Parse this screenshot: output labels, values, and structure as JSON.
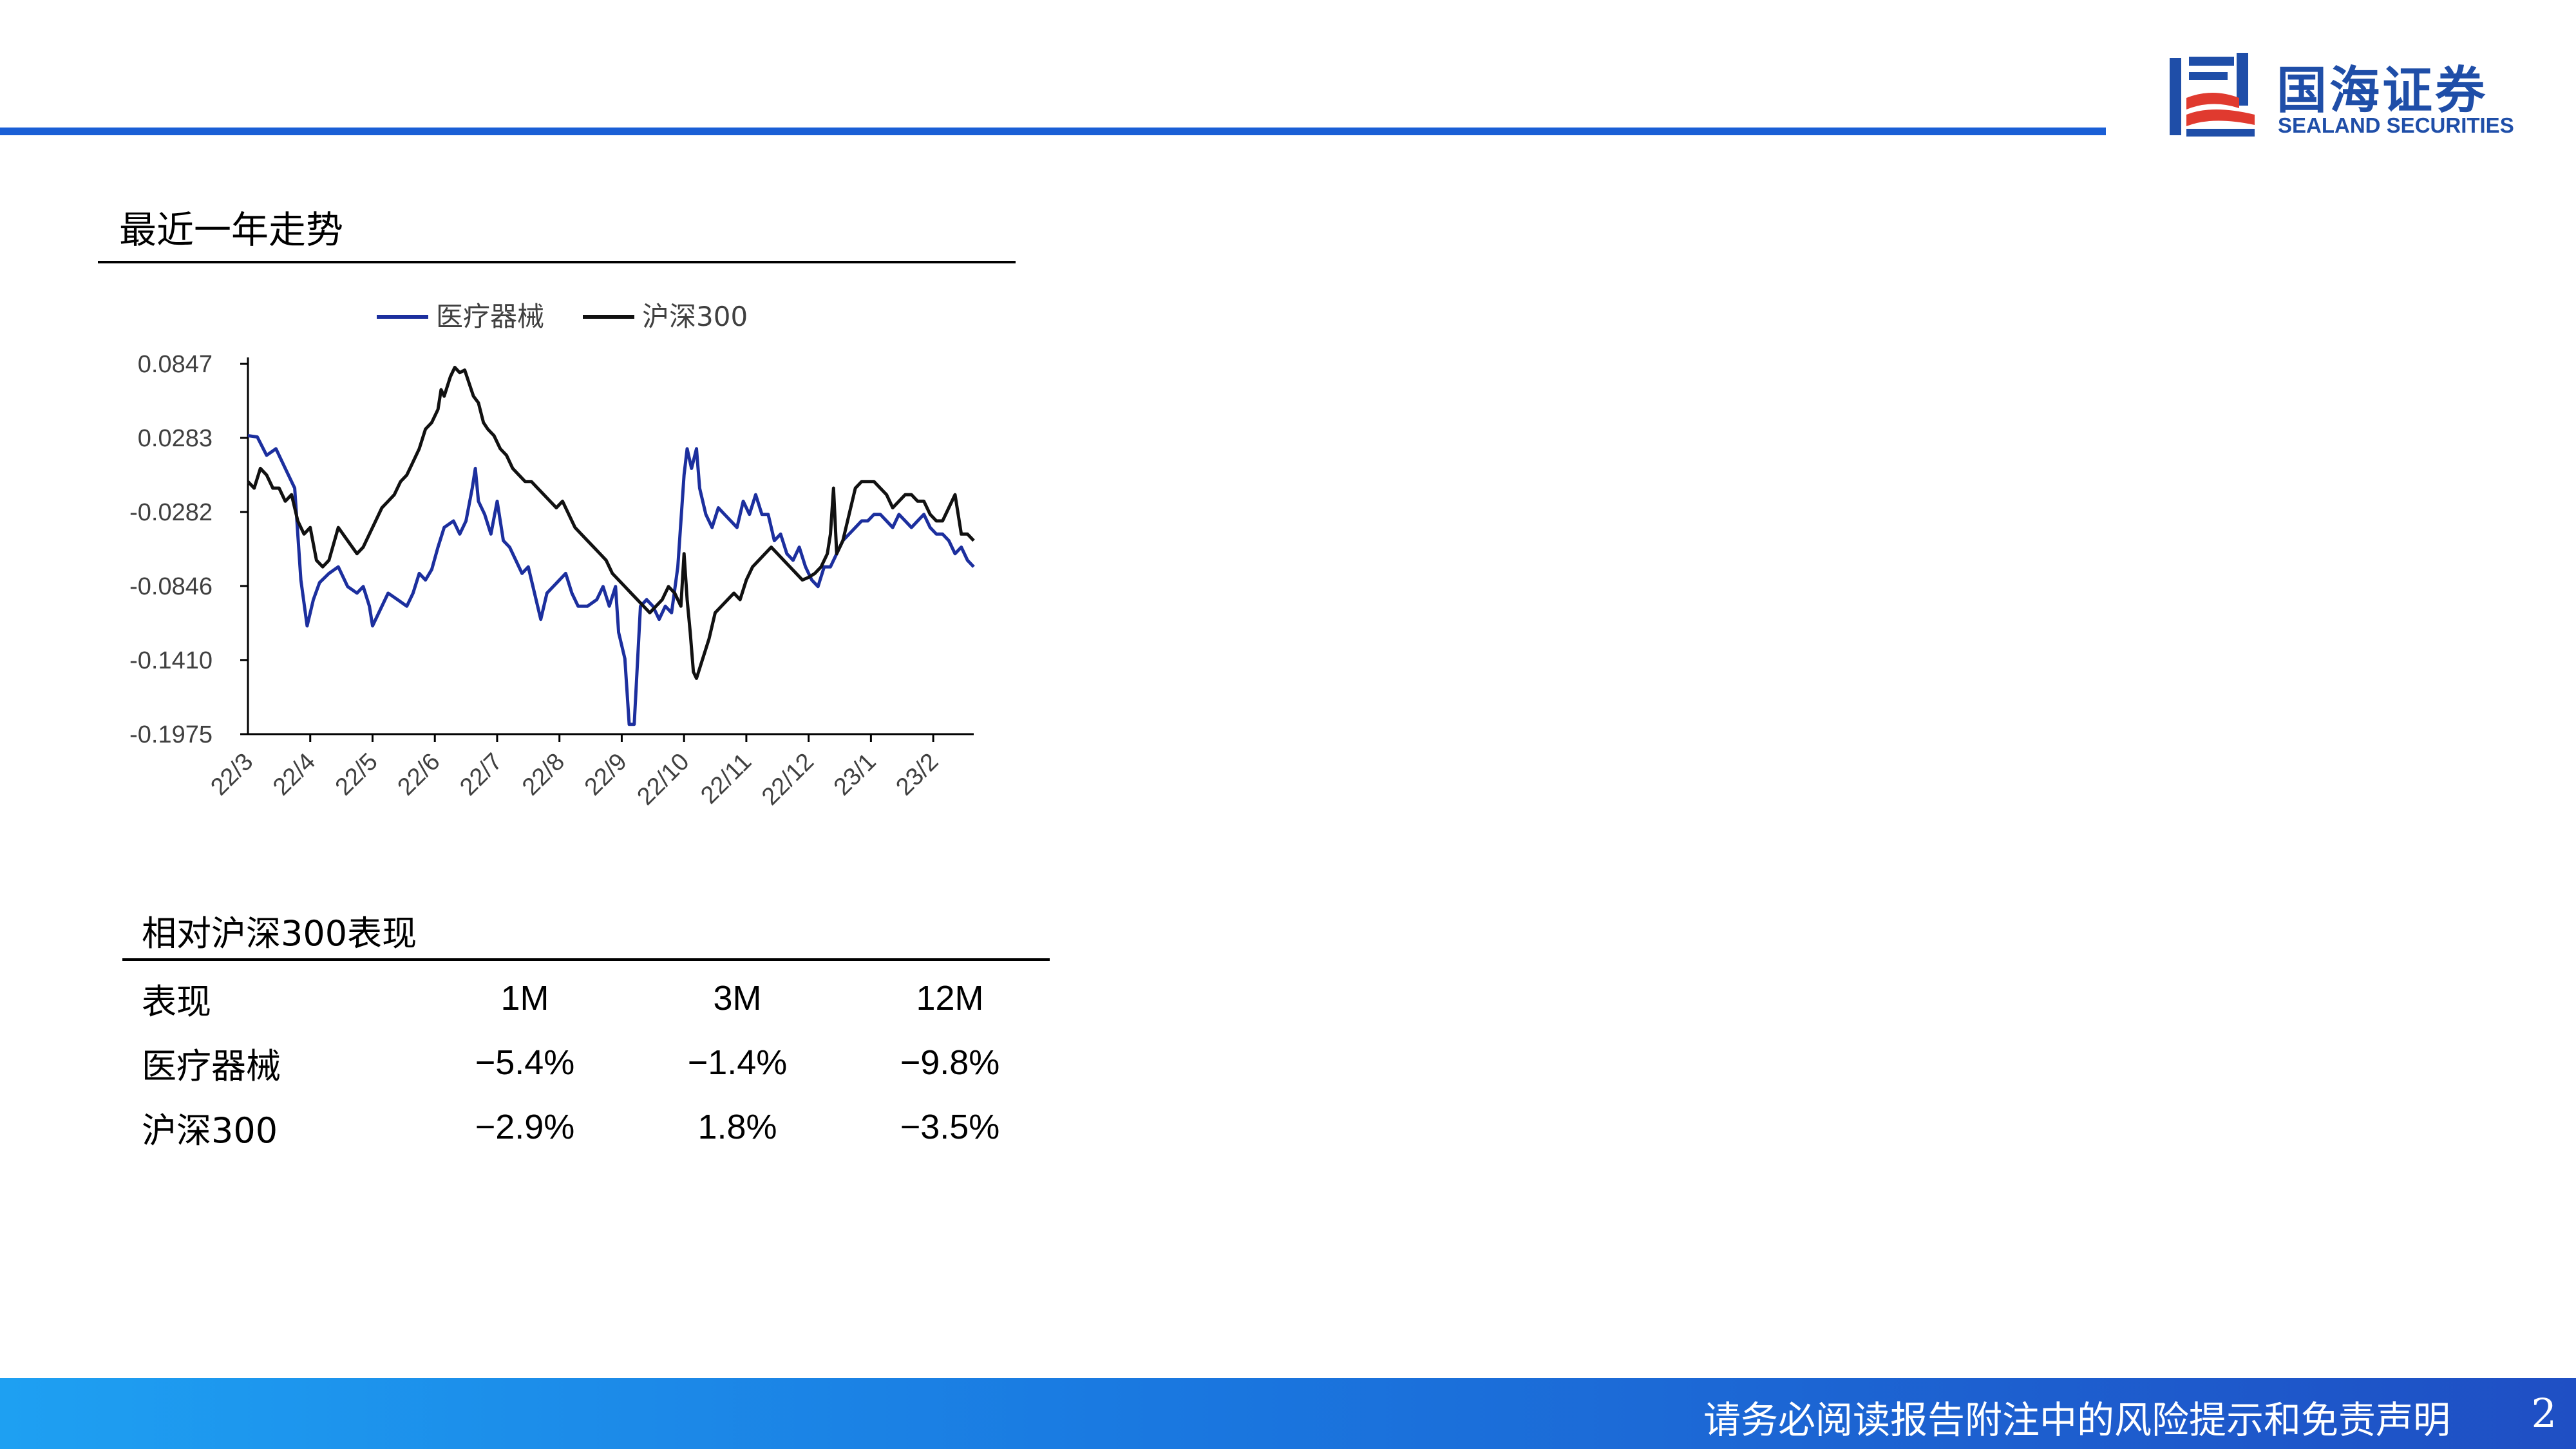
{
  "header": {
    "logo_cn": "国海证券",
    "logo_en": "SEALAND SECURITIES",
    "brand_color": "#1a5fd6"
  },
  "section": {
    "title": "最近一年走势"
  },
  "chart_data": {
    "type": "line",
    "legend": {
      "position": "top",
      "items": [
        "医疗器械",
        "沪深300"
      ]
    },
    "yticks": [
      "0.0847",
      "0.0283",
      "-0.0282",
      "-0.0846",
      "-0.1410",
      "-0.1975"
    ],
    "ylim": [
      -0.1975,
      0.0847
    ],
    "xticks": [
      "22/3",
      "22/4",
      "22/5",
      "22/6",
      "22/7",
      "22/8",
      "22/9",
      "22/10",
      "22/11",
      "22/12",
      "23/1",
      "23/2"
    ],
    "xlim": [
      0,
      11.65
    ],
    "grid": false,
    "series": [
      {
        "name": "医疗器械",
        "color": "#1c2f9e",
        "points": [
          [
            0,
            0.03
          ],
          [
            0.15,
            0.029
          ],
          [
            0.3,
            0.015
          ],
          [
            0.45,
            0.02
          ],
          [
            0.6,
            0.005
          ],
          [
            0.75,
            -0.01
          ],
          [
            0.85,
            -0.08
          ],
          [
            0.95,
            -0.115
          ],
          [
            1.05,
            -0.095
          ],
          [
            1.15,
            -0.082
          ],
          [
            1.3,
            -0.075
          ],
          [
            1.45,
            -0.07
          ],
          [
            1.6,
            -0.085
          ],
          [
            1.75,
            -0.09
          ],
          [
            1.85,
            -0.085
          ],
          [
            1.95,
            -0.1
          ],
          [
            2.0,
            -0.115
          ],
          [
            2.1,
            -0.105
          ],
          [
            2.25,
            -0.09
          ],
          [
            2.4,
            -0.095
          ],
          [
            2.55,
            -0.1
          ],
          [
            2.65,
            -0.09
          ],
          [
            2.75,
            -0.075
          ],
          [
            2.85,
            -0.08
          ],
          [
            2.95,
            -0.072
          ],
          [
            3.05,
            -0.055
          ],
          [
            3.15,
            -0.04
          ],
          [
            3.3,
            -0.035
          ],
          [
            3.4,
            -0.045
          ],
          [
            3.5,
            -0.035
          ],
          [
            3.6,
            -0.01
          ],
          [
            3.65,
            0.005
          ],
          [
            3.7,
            -0.02
          ],
          [
            3.8,
            -0.03
          ],
          [
            3.9,
            -0.045
          ],
          [
            4.0,
            -0.02
          ],
          [
            4.1,
            -0.05
          ],
          [
            4.2,
            -0.055
          ],
          [
            4.3,
            -0.065
          ],
          [
            4.4,
            -0.075
          ],
          [
            4.5,
            -0.07
          ],
          [
            4.6,
            -0.09
          ],
          [
            4.7,
            -0.11
          ],
          [
            4.8,
            -0.09
          ],
          [
            4.9,
            -0.085
          ],
          [
            5.0,
            -0.08
          ],
          [
            5.1,
            -0.075
          ],
          [
            5.2,
            -0.09
          ],
          [
            5.3,
            -0.1
          ],
          [
            5.45,
            -0.1
          ],
          [
            5.6,
            -0.095
          ],
          [
            5.7,
            -0.085
          ],
          [
            5.8,
            -0.1
          ],
          [
            5.9,
            -0.085
          ],
          [
            5.95,
            -0.12
          ],
          [
            6.05,
            -0.14
          ],
          [
            6.12,
            -0.19
          ],
          [
            6.2,
            -0.19
          ],
          [
            6.3,
            -0.1
          ],
          [
            6.4,
            -0.095
          ],
          [
            6.5,
            -0.1
          ],
          [
            6.6,
            -0.11
          ],
          [
            6.7,
            -0.1
          ],
          [
            6.8,
            -0.105
          ],
          [
            6.9,
            -0.07
          ],
          [
            7.0,
            0.0
          ],
          [
            7.05,
            0.02
          ],
          [
            7.12,
            0.005
          ],
          [
            7.2,
            0.02
          ],
          [
            7.25,
            -0.01
          ],
          [
            7.35,
            -0.03
          ],
          [
            7.45,
            -0.04
          ],
          [
            7.55,
            -0.025
          ],
          [
            7.65,
            -0.03
          ],
          [
            7.75,
            -0.035
          ],
          [
            7.85,
            -0.04
          ],
          [
            7.95,
            -0.02
          ],
          [
            8.05,
            -0.03
          ],
          [
            8.15,
            -0.015
          ],
          [
            8.25,
            -0.03
          ],
          [
            8.35,
            -0.03
          ],
          [
            8.45,
            -0.05
          ],
          [
            8.55,
            -0.045
          ],
          [
            8.65,
            -0.06
          ],
          [
            8.75,
            -0.065
          ],
          [
            8.85,
            -0.055
          ],
          [
            8.95,
            -0.07
          ],
          [
            9.05,
            -0.08
          ],
          [
            9.15,
            -0.085
          ],
          [
            9.25,
            -0.07
          ],
          [
            9.35,
            -0.07
          ],
          [
            9.45,
            -0.06
          ],
          [
            9.55,
            -0.05
          ],
          [
            9.65,
            -0.045
          ],
          [
            9.75,
            -0.04
          ],
          [
            9.85,
            -0.035
          ],
          [
            9.95,
            -0.035
          ],
          [
            10.05,
            -0.03
          ],
          [
            10.15,
            -0.03
          ],
          [
            10.25,
            -0.035
          ],
          [
            10.35,
            -0.04
          ],
          [
            10.45,
            -0.03
          ],
          [
            10.55,
            -0.035
          ],
          [
            10.65,
            -0.04
          ],
          [
            10.75,
            -0.035
          ],
          [
            10.85,
            -0.03
          ],
          [
            10.95,
            -0.04
          ],
          [
            11.05,
            -0.045
          ],
          [
            11.15,
            -0.045
          ],
          [
            11.25,
            -0.05
          ],
          [
            11.35,
            -0.06
          ],
          [
            11.45,
            -0.055
          ],
          [
            11.55,
            -0.065
          ],
          [
            11.65,
            -0.07
          ]
        ]
      },
      {
        "name": "沪深300",
        "color": "#111111",
        "points": [
          [
            0,
            -0.005
          ],
          [
            0.1,
            -0.01
          ],
          [
            0.2,
            0.005
          ],
          [
            0.3,
            0.0
          ],
          [
            0.4,
            -0.01
          ],
          [
            0.5,
            -0.01
          ],
          [
            0.6,
            -0.02
          ],
          [
            0.7,
            -0.015
          ],
          [
            0.8,
            -0.035
          ],
          [
            0.9,
            -0.045
          ],
          [
            1.0,
            -0.04
          ],
          [
            1.1,
            -0.065
          ],
          [
            1.2,
            -0.07
          ],
          [
            1.3,
            -0.065
          ],
          [
            1.45,
            -0.04
          ],
          [
            1.6,
            -0.05
          ],
          [
            1.75,
            -0.06
          ],
          [
            1.85,
            -0.055
          ],
          [
            1.95,
            -0.045
          ],
          [
            2.05,
            -0.035
          ],
          [
            2.15,
            -0.025
          ],
          [
            2.25,
            -0.02
          ],
          [
            2.35,
            -0.015
          ],
          [
            2.45,
            -0.005
          ],
          [
            2.55,
            0.0
          ],
          [
            2.65,
            0.01
          ],
          [
            2.75,
            0.02
          ],
          [
            2.85,
            0.035
          ],
          [
            2.95,
            0.04
          ],
          [
            3.05,
            0.05
          ],
          [
            3.1,
            0.065
          ],
          [
            3.15,
            0.06
          ],
          [
            3.25,
            0.075
          ],
          [
            3.32,
            0.082
          ],
          [
            3.4,
            0.078
          ],
          [
            3.48,
            0.08
          ],
          [
            3.55,
            0.07
          ],
          [
            3.62,
            0.06
          ],
          [
            3.7,
            0.055
          ],
          [
            3.78,
            0.04
          ],
          [
            3.85,
            0.035
          ],
          [
            3.95,
            0.03
          ],
          [
            4.05,
            0.02
          ],
          [
            4.15,
            0.015
          ],
          [
            4.25,
            0.005
          ],
          [
            4.35,
            0.0
          ],
          [
            4.45,
            -0.005
          ],
          [
            4.55,
            -0.005
          ],
          [
            4.65,
            -0.01
          ],
          [
            4.75,
            -0.015
          ],
          [
            4.85,
            -0.02
          ],
          [
            4.95,
            -0.025
          ],
          [
            5.05,
            -0.02
          ],
          [
            5.15,
            -0.03
          ],
          [
            5.25,
            -0.04
          ],
          [
            5.35,
            -0.045
          ],
          [
            5.45,
            -0.05
          ],
          [
            5.55,
            -0.055
          ],
          [
            5.65,
            -0.06
          ],
          [
            5.75,
            -0.065
          ],
          [
            5.85,
            -0.075
          ],
          [
            5.95,
            -0.08
          ],
          [
            6.05,
            -0.085
          ],
          [
            6.15,
            -0.09
          ],
          [
            6.25,
            -0.095
          ],
          [
            6.35,
            -0.1
          ],
          [
            6.45,
            -0.105
          ],
          [
            6.55,
            -0.1
          ],
          [
            6.65,
            -0.095
          ],
          [
            6.75,
            -0.085
          ],
          [
            6.85,
            -0.09
          ],
          [
            6.95,
            -0.1
          ],
          [
            7.0,
            -0.06
          ],
          [
            7.05,
            -0.095
          ],
          [
            7.1,
            -0.12
          ],
          [
            7.15,
            -0.15
          ],
          [
            7.2,
            -0.155
          ],
          [
            7.3,
            -0.14
          ],
          [
            7.4,
            -0.125
          ],
          [
            7.5,
            -0.105
          ],
          [
            7.6,
            -0.1
          ],
          [
            7.7,
            -0.095
          ],
          [
            7.8,
            -0.09
          ],
          [
            7.9,
            -0.095
          ],
          [
            8.0,
            -0.08
          ],
          [
            8.1,
            -0.07
          ],
          [
            8.2,
            -0.065
          ],
          [
            8.3,
            -0.06
          ],
          [
            8.4,
            -0.055
          ],
          [
            8.5,
            -0.06
          ],
          [
            8.6,
            -0.065
          ],
          [
            8.7,
            -0.07
          ],
          [
            8.8,
            -0.075
          ],
          [
            8.9,
            -0.08
          ],
          [
            9.0,
            -0.078
          ],
          [
            9.1,
            -0.075
          ],
          [
            9.2,
            -0.07
          ],
          [
            9.3,
            -0.06
          ],
          [
            9.35,
            -0.045
          ],
          [
            9.4,
            -0.01
          ],
          [
            9.45,
            -0.06
          ],
          [
            9.55,
            -0.05
          ],
          [
            9.65,
            -0.03
          ],
          [
            9.75,
            -0.01
          ],
          [
            9.85,
            -0.005
          ],
          [
            9.95,
            -0.005
          ],
          [
            10.05,
            -0.005
          ],
          [
            10.15,
            -0.01
          ],
          [
            10.25,
            -0.015
          ],
          [
            10.35,
            -0.025
          ],
          [
            10.45,
            -0.02
          ],
          [
            10.55,
            -0.015
          ],
          [
            10.65,
            -0.015
          ],
          [
            10.75,
            -0.02
          ],
          [
            10.85,
            -0.02
          ],
          [
            10.95,
            -0.03
          ],
          [
            11.05,
            -0.035
          ],
          [
            11.15,
            -0.035
          ],
          [
            11.25,
            -0.025
          ],
          [
            11.35,
            -0.015
          ],
          [
            11.45,
            -0.045
          ],
          [
            11.55,
            -0.045
          ],
          [
            11.65,
            -0.05
          ]
        ]
      }
    ]
  },
  "table": {
    "title": "相对沪深300表现",
    "header": [
      "表现",
      "1M",
      "3M",
      "12M"
    ],
    "rows": [
      [
        "医疗器械",
        "−5.4%",
        "−1.4%",
        "−9.8%"
      ],
      [
        "沪深300",
        "−2.9%",
        "1.8%",
        "−3.5%"
      ]
    ]
  },
  "footer": {
    "disclaimer": "请务必阅读报告附注中的风险提示和免责声明",
    "page": "2"
  }
}
